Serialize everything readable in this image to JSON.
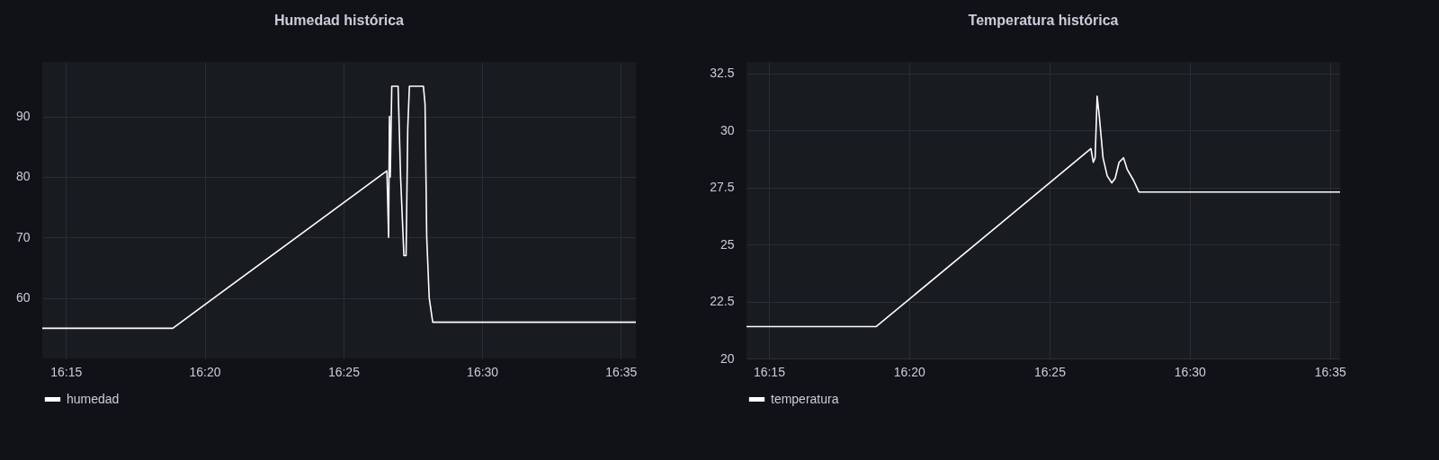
{
  "chart_data": [
    {
      "type": "line",
      "title": "Humedad histórica",
      "x": [
        16.2358,
        16.3142,
        16.4428,
        16.4438,
        16.4443,
        16.4448,
        16.4457,
        16.4495,
        16.451,
        16.453,
        16.4543,
        16.4553,
        16.4563,
        16.4647,
        16.4657,
        16.4667,
        16.4682,
        16.4703,
        16.5923
      ],
      "series": [
        {
          "name": "humedad",
          "color": "#ffffff",
          "values": [
            55,
            55,
            81,
            70,
            90,
            80,
            95,
            95,
            80,
            67,
            67,
            88,
            95,
            95,
            92,
            70,
            60,
            56,
            56
          ]
        }
      ],
      "xlim": [
        16.2358,
        16.5923
      ],
      "xticks": [
        {
          "value": 16.25,
          "label": "16:15"
        },
        {
          "value": 16.3333,
          "label": "16:20"
        },
        {
          "value": 16.4167,
          "label": "16:25"
        },
        {
          "value": 16.5,
          "label": "16:30"
        },
        {
          "value": 16.5833,
          "label": "16:35"
        }
      ],
      "ylim": [
        50,
        99
      ],
      "yticks": [
        60,
        70,
        80,
        90
      ],
      "grid": true,
      "legend": "bottom left"
    },
    {
      "type": "line",
      "title": "Temperatura histórica",
      "x": [
        16.2367,
        16.3138,
        16.4413,
        16.4427,
        16.4438,
        16.445,
        16.4463,
        16.4485,
        16.451,
        16.4537,
        16.4557,
        16.458,
        16.4607,
        16.4628,
        16.4667,
        16.4698,
        16.5893
      ],
      "series": [
        {
          "name": "temperatura",
          "color": "#ffffff",
          "values": [
            21.4,
            21.4,
            29.2,
            28.6,
            28.8,
            31.5,
            30.6,
            28.8,
            28.0,
            27.7,
            27.9,
            28.6,
            28.8,
            28.3,
            27.8,
            27.3,
            27.3
          ]
        }
      ],
      "xlim": [
        16.2367,
        16.5893
      ],
      "xticks": [
        {
          "value": 16.25,
          "label": "16:15"
        },
        {
          "value": 16.3333,
          "label": "16:20"
        },
        {
          "value": 16.4167,
          "label": "16:25"
        },
        {
          "value": 16.5,
          "label": "16:30"
        },
        {
          "value": 16.5833,
          "label": "16:35"
        }
      ],
      "ylim": [
        20,
        33
      ],
      "yticks": [
        20,
        22.5,
        25,
        27.5,
        30,
        32.5
      ],
      "grid": true,
      "legend": "bottom left"
    }
  ]
}
